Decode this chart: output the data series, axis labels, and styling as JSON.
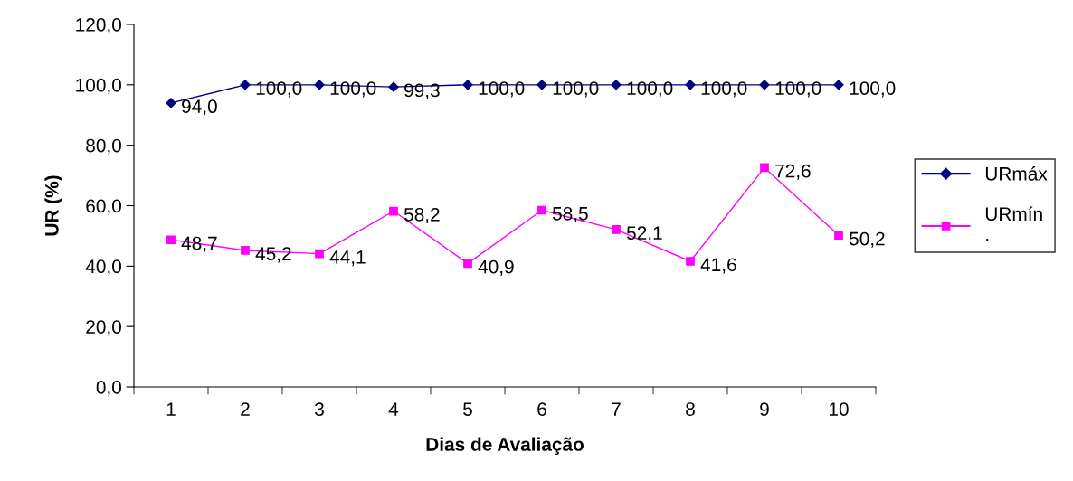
{
  "chart_data": {
    "type": "line",
    "xlabel": "Dias de Avaliação",
    "ylabel": "UR (%)",
    "categories": [
      "1",
      "2",
      "3",
      "4",
      "5",
      "6",
      "7",
      "8",
      "9",
      "10"
    ],
    "ylim": [
      0,
      120
    ],
    "yticks": [
      {
        "value": 0,
        "label": "0,0"
      },
      {
        "value": 20,
        "label": "20,0"
      },
      {
        "value": 40,
        "label": "40,0"
      },
      {
        "value": 60,
        "label": "60,0"
      },
      {
        "value": 80,
        "label": "80,0"
      },
      {
        "value": 100,
        "label": "100,0"
      },
      {
        "value": 120,
        "label": "120,0"
      }
    ],
    "grid": false,
    "legend": "right",
    "series": [
      {
        "name": "URmáx",
        "color": "#000080",
        "marker": "diamond",
        "values": [
          94.0,
          100.0,
          100.0,
          99.3,
          100.0,
          100.0,
          100.0,
          100.0,
          100.0,
          100.0
        ],
        "value_labels": [
          "94,0",
          "100,0",
          "100,0",
          "99,3",
          "100,0",
          "100,0",
          "100,0",
          "100,0",
          "100,0",
          "100,0"
        ]
      },
      {
        "name": "URmín\n.",
        "color": "#ff00ff",
        "marker": "square",
        "values": [
          48.7,
          45.2,
          44.1,
          58.2,
          40.9,
          58.5,
          52.1,
          41.6,
          72.6,
          50.2
        ],
        "value_labels": [
          "48,7",
          "45,2",
          "44,1",
          "58,2",
          "40,9",
          "58,5",
          "52,1",
          "41,6",
          "72,6",
          "50,2"
        ]
      }
    ]
  }
}
